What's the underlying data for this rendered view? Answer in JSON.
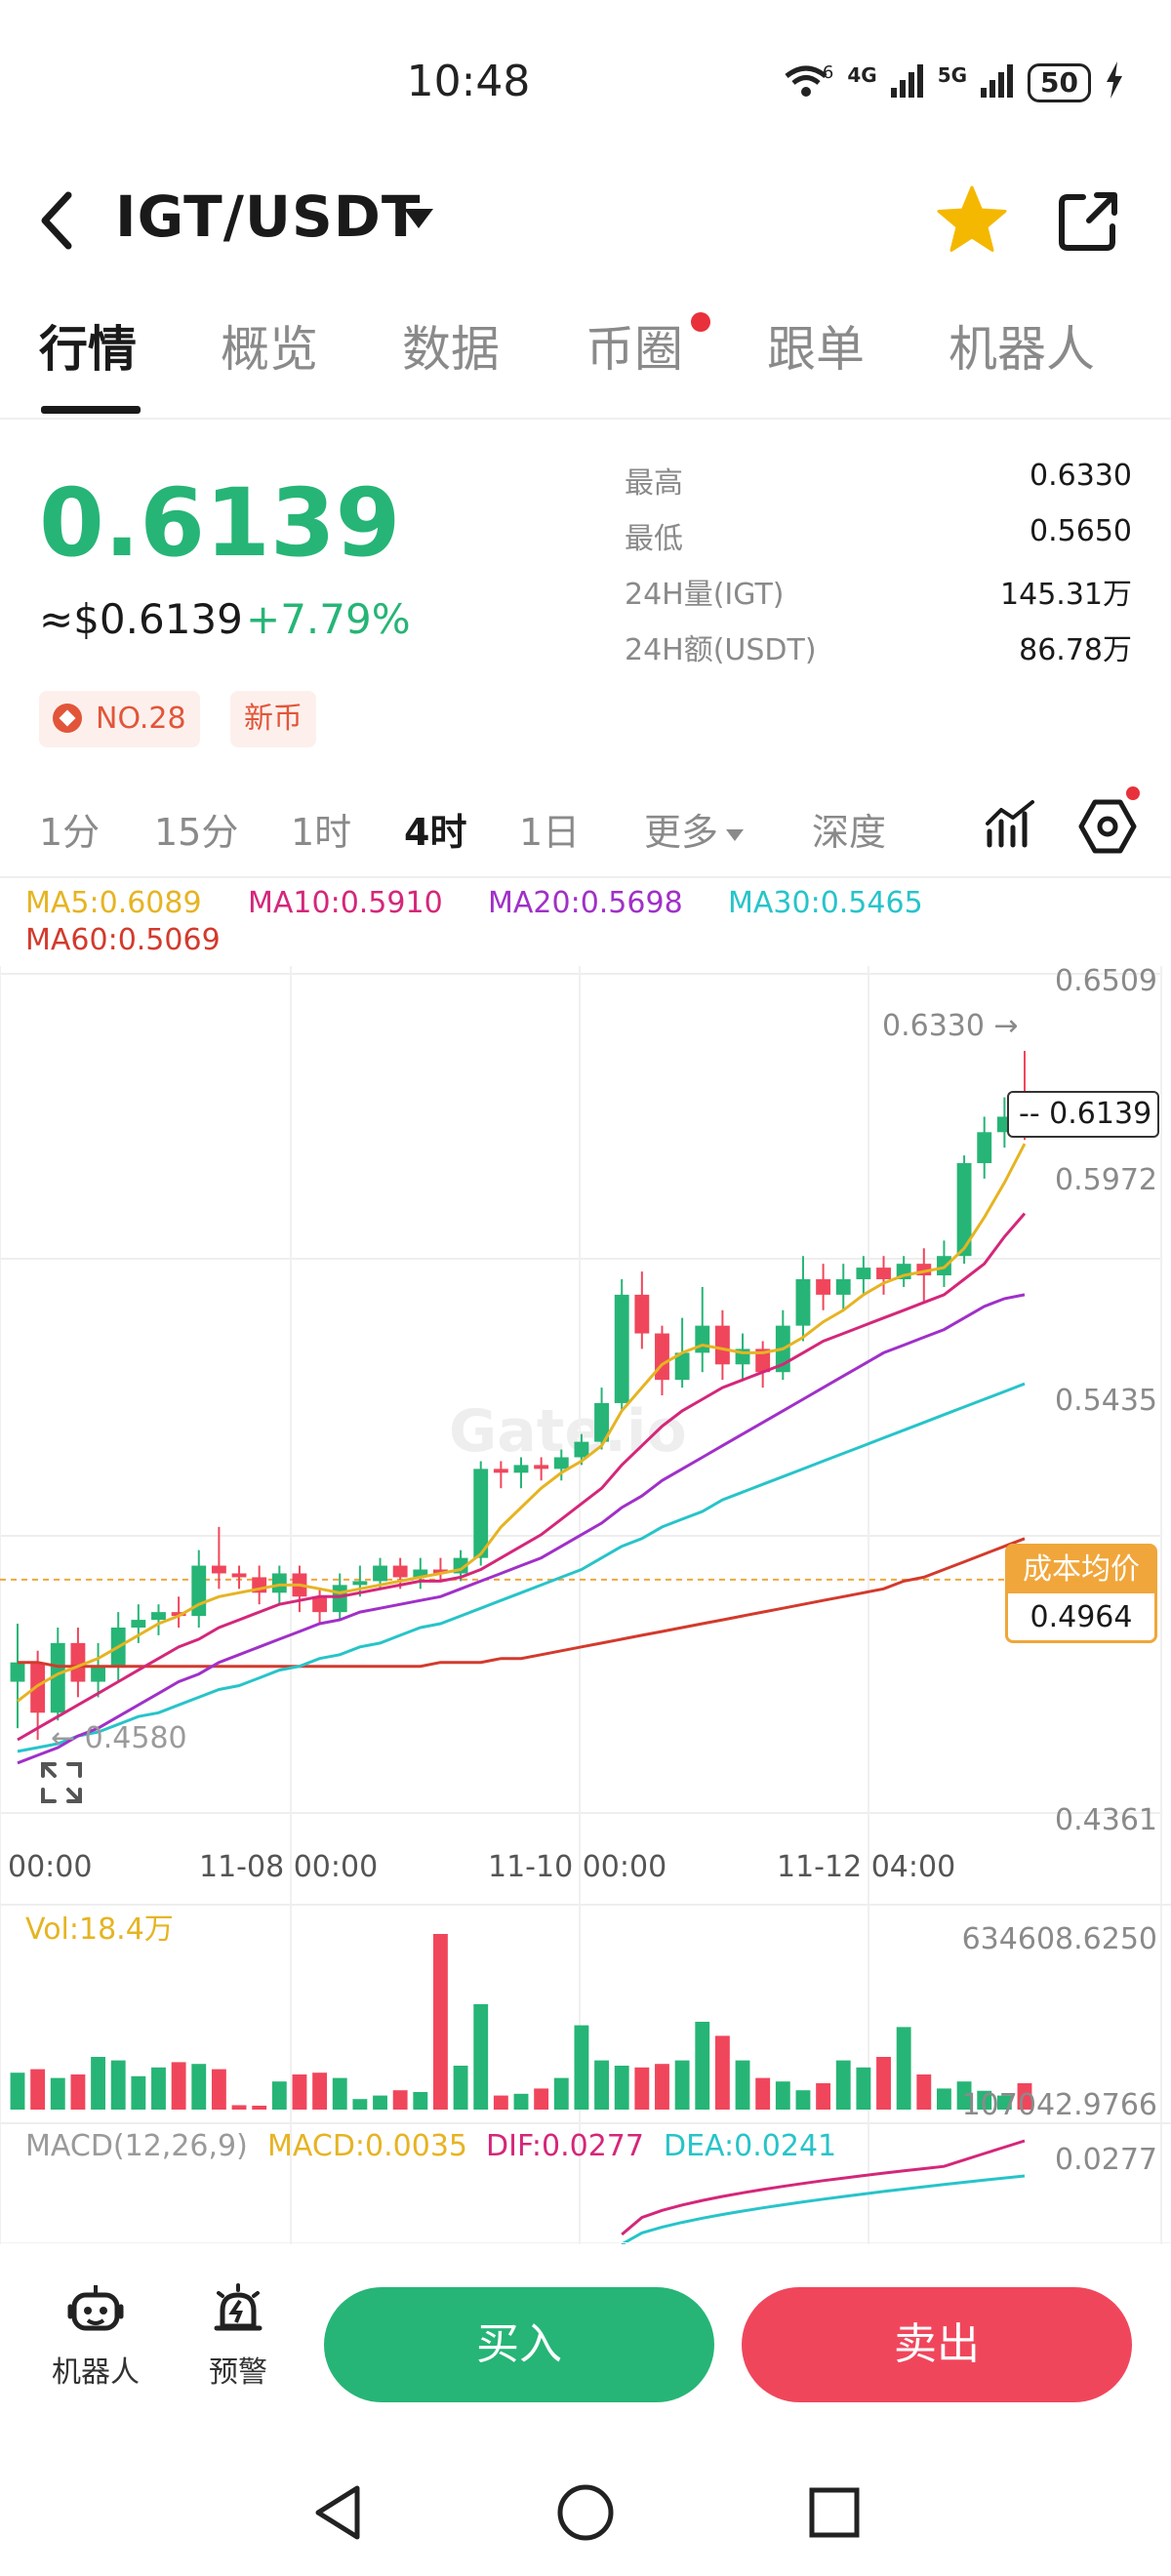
{
  "status": {
    "time": "10:48",
    "battery": "50",
    "net1": "4G",
    "net2": "5G",
    "wifi_tag": "6"
  },
  "header": {
    "pair": "IGT/USDT"
  },
  "tabs": [
    "行情",
    "概览",
    "数据",
    "币圈",
    "跟单",
    "机器人"
  ],
  "price": {
    "last": "0.6139",
    "usd": "≈$0.6139",
    "change": "+7.79%",
    "stats": [
      {
        "label": "最高",
        "value": "0.6330"
      },
      {
        "label": "最低",
        "value": "0.5650"
      },
      {
        "label": "24H量(IGT)",
        "value": "145.31万"
      },
      {
        "label": "24H额(USDT)",
        "value": "86.78万"
      }
    ],
    "rank_badge": "NO.28",
    "new_badge": "新币"
  },
  "intervals": [
    "1分",
    "15分",
    "1时",
    "4时",
    "1日",
    "更多",
    "深度"
  ],
  "ma_legend": {
    "ma5": "MA5:0.6089",
    "ma10": "MA10:0.5910",
    "ma20": "MA20:0.5698",
    "ma30": "MA30:0.5465",
    "ma60": "MA60:0.5069"
  },
  "colors": {
    "up": "#26b576",
    "down": "#f0465c",
    "ma5": "#e6b422",
    "ma10": "#d4277a",
    "ma20": "#a030c8",
    "ma30": "#27c4c9",
    "ma60": "#d33a2c"
  },
  "chart": {
    "y_labels": [
      "0.6509",
      "0.5972",
      "0.5435",
      "0.4361"
    ],
    "x_labels": [
      "00:00",
      "11-08 00:00",
      "11-10 00:00",
      "11-12 04:00"
    ],
    "high_marker": "0.6330 →",
    "low_marker": "← 0.4580",
    "current_price": "-- 0.6139",
    "cost_title": "成本均价",
    "cost_value": "0.4964",
    "watermark": "Gate.io"
  },
  "volume": {
    "label": "Vol:18.4万",
    "max": "634608.6250",
    "min": "107042.9766"
  },
  "macd": {
    "params": "MACD(12,26,9)",
    "macd": "MACD:0.0035",
    "dif": "DIF:0.0277",
    "dea": "DEA:0.0241",
    "axis": "0.0277"
  },
  "bottom": {
    "robot": "机器人",
    "alert": "预警",
    "buy": "买入",
    "sell": "卖出"
  },
  "chart_data": {
    "type": "candlestick",
    "interval": "4时",
    "ylim": [
      0.4361,
      0.6509
    ],
    "x_ticks": [
      "00:00",
      "11-08 00:00",
      "11-10 00:00",
      "11-12 04:00"
    ],
    "candles": [
      [
        0.47,
        0.475,
        0.458,
        0.485
      ],
      [
        0.475,
        0.462,
        0.455,
        0.478
      ],
      [
        0.462,
        0.48,
        0.46,
        0.484
      ],
      [
        0.48,
        0.47,
        0.466,
        0.484
      ],
      [
        0.47,
        0.474,
        0.466,
        0.48
      ],
      [
        0.474,
        0.484,
        0.47,
        0.488
      ],
      [
        0.484,
        0.486,
        0.48,
        0.49
      ],
      [
        0.486,
        0.488,
        0.482,
        0.49
      ],
      [
        0.488,
        0.487,
        0.484,
        0.492
      ],
      [
        0.487,
        0.5,
        0.484,
        0.504
      ],
      [
        0.5,
        0.498,
        0.494,
        0.51
      ],
      [
        0.498,
        0.497,
        0.494,
        0.5
      ],
      [
        0.497,
        0.493,
        0.49,
        0.5
      ],
      [
        0.493,
        0.498,
        0.49,
        0.5
      ],
      [
        0.498,
        0.492,
        0.488,
        0.5
      ],
      [
        0.492,
        0.488,
        0.485,
        0.494
      ],
      [
        0.488,
        0.495,
        0.486,
        0.498
      ],
      [
        0.495,
        0.496,
        0.492,
        0.5
      ],
      [
        0.496,
        0.5,
        0.494,
        0.502
      ],
      [
        0.5,
        0.497,
        0.494,
        0.502
      ],
      [
        0.497,
        0.499,
        0.494,
        0.502
      ],
      [
        0.499,
        0.498,
        0.496,
        0.502
      ],
      [
        0.498,
        0.502,
        0.496,
        0.504
      ],
      [
        0.502,
        0.525,
        0.5,
        0.527
      ],
      [
        0.525,
        0.524,
        0.52,
        0.527
      ],
      [
        0.524,
        0.526,
        0.52,
        0.528
      ],
      [
        0.526,
        0.525,
        0.522,
        0.528
      ],
      [
        0.525,
        0.528,
        0.522,
        0.53
      ],
      [
        0.528,
        0.532,
        0.526,
        0.534
      ],
      [
        0.532,
        0.542,
        0.53,
        0.546
      ],
      [
        0.542,
        0.57,
        0.54,
        0.574
      ],
      [
        0.57,
        0.56,
        0.556,
        0.576
      ],
      [
        0.56,
        0.548,
        0.544,
        0.562
      ],
      [
        0.548,
        0.555,
        0.546,
        0.564
      ],
      [
        0.555,
        0.562,
        0.55,
        0.572
      ],
      [
        0.562,
        0.552,
        0.548,
        0.566
      ],
      [
        0.552,
        0.556,
        0.548,
        0.56
      ],
      [
        0.556,
        0.55,
        0.546,
        0.558
      ],
      [
        0.55,
        0.562,
        0.548,
        0.566
      ],
      [
        0.562,
        0.574,
        0.558,
        0.58
      ],
      [
        0.574,
        0.57,
        0.566,
        0.578
      ],
      [
        0.57,
        0.574,
        0.566,
        0.578
      ],
      [
        0.574,
        0.577,
        0.57,
        0.58
      ],
      [
        0.577,
        0.574,
        0.57,
        0.58
      ],
      [
        0.574,
        0.578,
        0.572,
        0.58
      ],
      [
        0.578,
        0.575,
        0.568,
        0.582
      ],
      [
        0.575,
        0.58,
        0.572,
        0.584
      ],
      [
        0.58,
        0.604,
        0.578,
        0.606
      ],
      [
        0.604,
        0.612,
        0.6,
        0.616
      ],
      [
        0.612,
        0.616,
        0.608,
        0.621
      ],
      [
        0.616,
        0.614,
        0.61,
        0.633
      ]
    ],
    "ma5": [
      0.465,
      0.469,
      0.472,
      0.474,
      0.476,
      0.479,
      0.482,
      0.485,
      0.487,
      0.49,
      0.492,
      0.493,
      0.494,
      0.495,
      0.495,
      0.494,
      0.493,
      0.494,
      0.495,
      0.496,
      0.497,
      0.498,
      0.499,
      0.503,
      0.51,
      0.515,
      0.52,
      0.524,
      0.527,
      0.531,
      0.54,
      0.546,
      0.552,
      0.555,
      0.557,
      0.556,
      0.555,
      0.555,
      0.556,
      0.559,
      0.563,
      0.566,
      0.57,
      0.573,
      0.575,
      0.576,
      0.577,
      0.582,
      0.59,
      0.599,
      0.609
    ],
    "ma10": [
      0.455,
      0.458,
      0.461,
      0.464,
      0.467,
      0.47,
      0.473,
      0.476,
      0.479,
      0.481,
      0.484,
      0.486,
      0.488,
      0.49,
      0.491,
      0.492,
      0.492,
      0.493,
      0.494,
      0.495,
      0.496,
      0.496,
      0.497,
      0.499,
      0.502,
      0.505,
      0.508,
      0.512,
      0.516,
      0.52,
      0.526,
      0.531,
      0.536,
      0.54,
      0.543,
      0.546,
      0.548,
      0.55,
      0.552,
      0.555,
      0.558,
      0.56,
      0.562,
      0.564,
      0.566,
      0.568,
      0.57,
      0.574,
      0.578,
      0.585,
      0.591
    ],
    "ma20": [
      0.449,
      0.451,
      0.453,
      0.456,
      0.458,
      0.461,
      0.464,
      0.467,
      0.47,
      0.472,
      0.475,
      0.477,
      0.479,
      0.481,
      0.483,
      0.485,
      0.486,
      0.488,
      0.489,
      0.49,
      0.491,
      0.492,
      0.494,
      0.496,
      0.498,
      0.5,
      0.502,
      0.505,
      0.508,
      0.511,
      0.515,
      0.518,
      0.522,
      0.525,
      0.528,
      0.531,
      0.534,
      0.537,
      0.54,
      0.543,
      0.546,
      0.549,
      0.552,
      0.555,
      0.557,
      0.559,
      0.561,
      0.564,
      0.567,
      0.569,
      0.57
    ],
    "ma30": [
      0.452,
      0.453,
      0.454,
      0.456,
      0.457,
      0.459,
      0.461,
      0.462,
      0.464,
      0.466,
      0.468,
      0.469,
      0.471,
      0.473,
      0.474,
      0.476,
      0.477,
      0.479,
      0.48,
      0.482,
      0.484,
      0.485,
      0.487,
      0.489,
      0.491,
      0.493,
      0.495,
      0.497,
      0.499,
      0.502,
      0.505,
      0.507,
      0.51,
      0.512,
      0.514,
      0.517,
      0.519,
      0.521,
      0.523,
      0.525,
      0.527,
      0.529,
      0.531,
      0.533,
      0.535,
      0.537,
      0.539,
      0.541,
      0.543,
      0.545,
      0.547
    ],
    "ma60": [
      0.475,
      0.475,
      0.474,
      0.474,
      0.474,
      0.474,
      0.474,
      0.474,
      0.474,
      0.474,
      0.474,
      0.474,
      0.474,
      0.474,
      0.474,
      0.474,
      0.474,
      0.474,
      0.474,
      0.474,
      0.474,
      0.475,
      0.475,
      0.475,
      0.476,
      0.476,
      0.477,
      0.478,
      0.479,
      0.48,
      0.481,
      0.482,
      0.483,
      0.484,
      0.485,
      0.486,
      0.487,
      0.488,
      0.489,
      0.49,
      0.491,
      0.492,
      0.493,
      0.494,
      0.496,
      0.497,
      0.499,
      0.501,
      0.503,
      0.505,
      0.507
    ],
    "cost_basis": 0.4964,
    "volume": [
      210,
      230,
      180,
      200,
      300,
      280,
      190,
      240,
      270,
      260,
      230,
      25,
      20,
      160,
      200,
      210,
      180,
      60,
      80,
      110,
      100,
      1000,
      250,
      600,
      80,
      90,
      120,
      180,
      480,
      280,
      250,
      240,
      260,
      280,
      500,
      420,
      280,
      180,
      160,
      110,
      150,
      280,
      240,
      300,
      470,
      200,
      120,
      160,
      107,
      80,
      150
    ],
    "volume_range": [
      107042.9766,
      634608.625
    ]
  }
}
